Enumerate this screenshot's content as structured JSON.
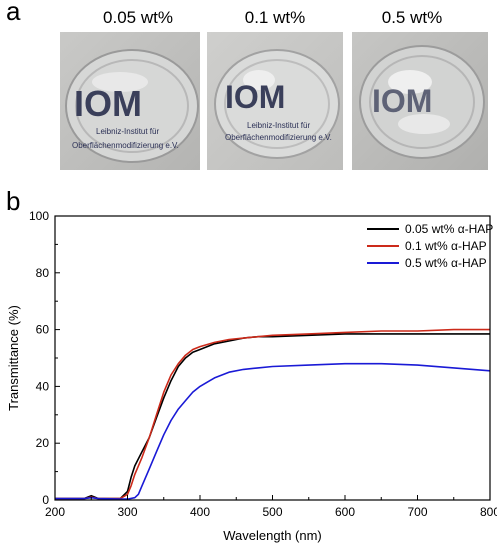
{
  "panel_a": {
    "letter": "a",
    "samples": [
      {
        "label": "0.05 wt%",
        "logo": "IOM",
        "caption_1": "Leibniz-Institut für",
        "caption_2": "Oberflächenmodifizierung e.V."
      },
      {
        "label": "0.1 wt%",
        "logo": "IOM",
        "caption_1": "Leibniz-Institut für",
        "caption_2": "Oberflächenmodifizierung e.V."
      },
      {
        "label": "0.5 wt%",
        "logo": "IOM",
        "caption_1": "",
        "caption_2": ""
      }
    ]
  },
  "panel_b": {
    "letter": "b"
  },
  "chart_data": {
    "type": "line",
    "title": "",
    "xlabel": "Wavelength (nm)",
    "ylabel": "Transmittance (%)",
    "xlim": [
      200,
      800
    ],
    "ylim": [
      0,
      100
    ],
    "xticks": [
      200,
      300,
      400,
      500,
      600,
      700,
      800
    ],
    "yticks": [
      0,
      20,
      40,
      60,
      80,
      100
    ],
    "grid": false,
    "legend_position": "top-right",
    "series": [
      {
        "name": "0.05 wt% α-HAP",
        "color": "#000000",
        "x": [
          200,
          240,
          250,
          260,
          290,
          300,
          305,
          310,
          320,
          330,
          340,
          350,
          360,
          370,
          380,
          390,
          400,
          420,
          440,
          460,
          480,
          500,
          550,
          600,
          650,
          700,
          750,
          800
        ],
        "y": [
          0.5,
          0.5,
          1.5,
          0.5,
          0.5,
          3,
          8,
          12,
          17,
          22,
          29,
          36,
          42,
          47,
          50,
          52,
          53,
          55,
          56,
          57,
          57.5,
          57.5,
          58,
          58.5,
          58.5,
          58.5,
          58.5,
          58.5
        ]
      },
      {
        "name": "0.1 wt% α-HAP",
        "color": "#cc2a1a",
        "x": [
          200,
          240,
          250,
          260,
          290,
          300,
          305,
          310,
          320,
          330,
          340,
          350,
          360,
          370,
          380,
          390,
          400,
          420,
          440,
          460,
          480,
          500,
          550,
          600,
          650,
          700,
          750,
          800
        ],
        "y": [
          0.5,
          0.5,
          1.0,
          0.5,
          0.5,
          2,
          5,
          9,
          15,
          22,
          30,
          38,
          44,
          48,
          51,
          53,
          54,
          55.5,
          56.5,
          57,
          57.5,
          58,
          58.5,
          59,
          59.5,
          59.5,
          60,
          60
        ]
      },
      {
        "name": "0.5 wt% α-HAP",
        "color": "#1a1ad6",
        "x": [
          200,
          240,
          250,
          260,
          290,
          300,
          310,
          315,
          320,
          330,
          340,
          350,
          360,
          370,
          380,
          390,
          400,
          420,
          440,
          460,
          480,
          500,
          550,
          600,
          650,
          700,
          750,
          800
        ],
        "y": [
          0.5,
          0.5,
          0.8,
          0.5,
          0.3,
          0.3,
          0.8,
          2,
          5,
          11,
          17,
          23,
          28,
          32,
          35,
          38,
          40,
          43,
          45,
          46,
          46.5,
          47,
          47.5,
          48,
          48,
          47.5,
          46.5,
          45.5
        ]
      }
    ]
  }
}
